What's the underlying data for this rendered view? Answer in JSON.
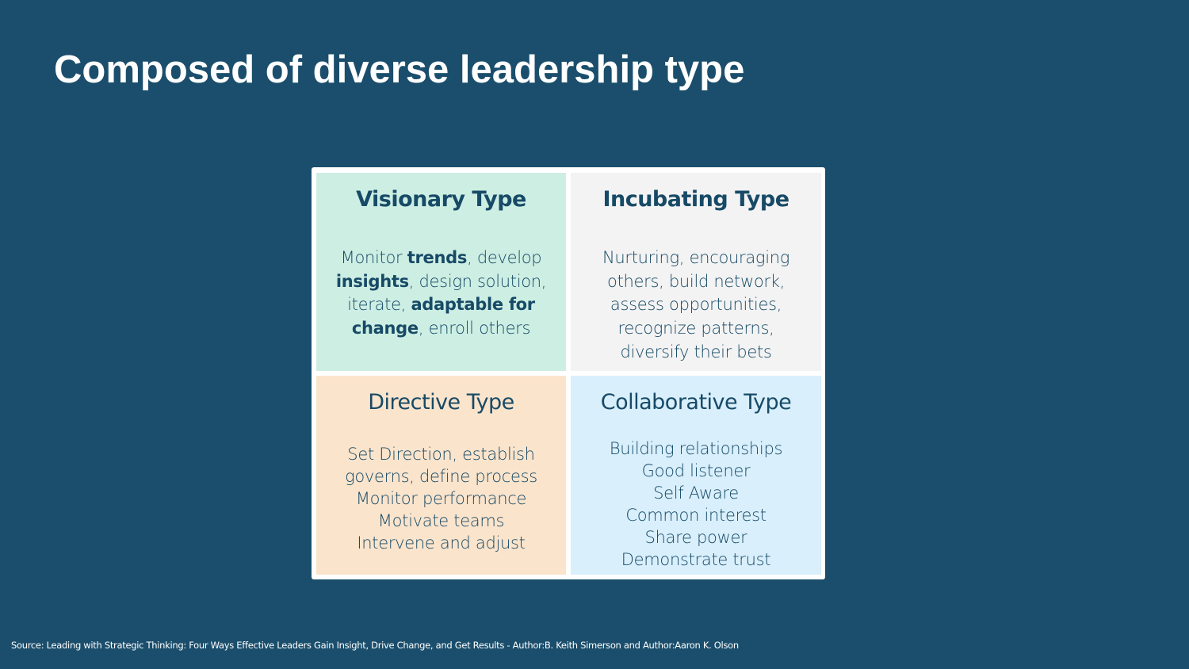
{
  "title": "Composed of diverse leadership type",
  "quadrants": {
    "visionary": {
      "heading": "Visionary Type",
      "lines": [
        [
          {
            "t": "Monitor ",
            "b": false
          },
          {
            "t": "trends",
            "b": true
          },
          {
            "t": ", develop",
            "b": false
          }
        ],
        [
          {
            "t": "insights",
            "b": true
          },
          {
            "t": ", design solution,",
            "b": false
          }
        ],
        [
          {
            "t": "iterate, ",
            "b": false
          },
          {
            "t": "adaptable for",
            "b": true
          }
        ],
        [
          {
            "t": "change",
            "b": true
          },
          {
            "t": ", enroll others",
            "b": false
          }
        ]
      ]
    },
    "incubating": {
      "heading": "Incubating Type",
      "lines": [
        "Nurturing, encouraging",
        "others, build network,",
        "assess opportunities,",
        "recognize patterns,",
        "diversify their bets"
      ]
    },
    "directive": {
      "heading": "Directive Type",
      "lines": [
        "Set Direction, establish",
        "governs, define process",
        "Monitor performance",
        "Motivate teams",
        "Intervene and adjust"
      ]
    },
    "collaborative": {
      "heading": "Collaborative Type",
      "lines": [
        "Building relationships",
        "Good listener",
        "Self Aware",
        "Common interest",
        "Share power",
        "Demonstrate trust"
      ]
    }
  },
  "source": "Source: Leading with Strategic Thinking: Four Ways Effective Leaders Gain Insight, Drive Change, and Get Results - Author:B. Keith Simerson and Author:Aaron K. Olson",
  "colors": {
    "background": "#1a4e6c",
    "text": "#174a66",
    "visionary": "#cdeee3",
    "incubating": "#f3f3f3",
    "directive": "#fbe4cc",
    "collaborative": "#d9effc"
  }
}
